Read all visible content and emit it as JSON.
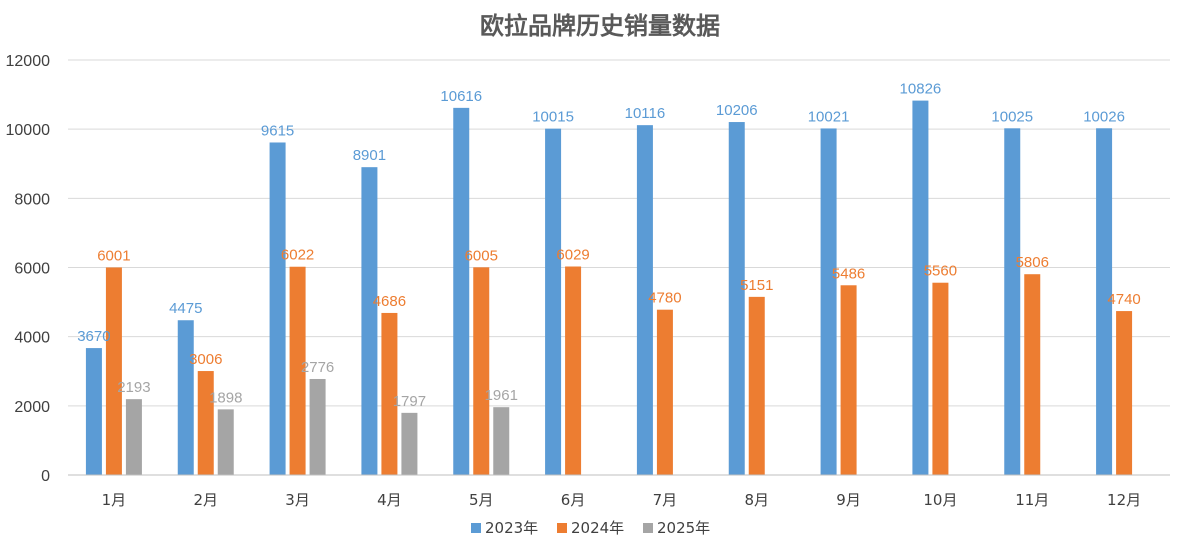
{
  "chart_data": {
    "type": "bar",
    "title": "欧拉品牌历史销量数据",
    "categories": [
      "1月",
      "2月",
      "3月",
      "4月",
      "5月",
      "6月",
      "7月",
      "8月",
      "9月",
      "10月",
      "11月",
      "12月"
    ],
    "series": [
      {
        "name": "2023年",
        "color": "#5b9bd5",
        "values": [
          3670,
          4475,
          9615,
          8901,
          10616,
          10015,
          10116,
          10206,
          10021,
          10826,
          10025,
          10026
        ]
      },
      {
        "name": "2024年",
        "color": "#ed7d31",
        "values": [
          6001,
          3006,
          6022,
          4686,
          6005,
          6029,
          4780,
          5151,
          5486,
          5560,
          5806,
          4740
        ]
      },
      {
        "name": "2025年",
        "color": "#a5a5a5",
        "values": [
          2193,
          1898,
          2776,
          1797,
          1961,
          null,
          null,
          null,
          null,
          null,
          null,
          null
        ]
      }
    ],
    "ylim": [
      0,
      12000
    ],
    "yticks": [
      0,
      2000,
      4000,
      6000,
      8000,
      10000,
      12000
    ],
    "grid": true,
    "legend_position": "bottom"
  }
}
